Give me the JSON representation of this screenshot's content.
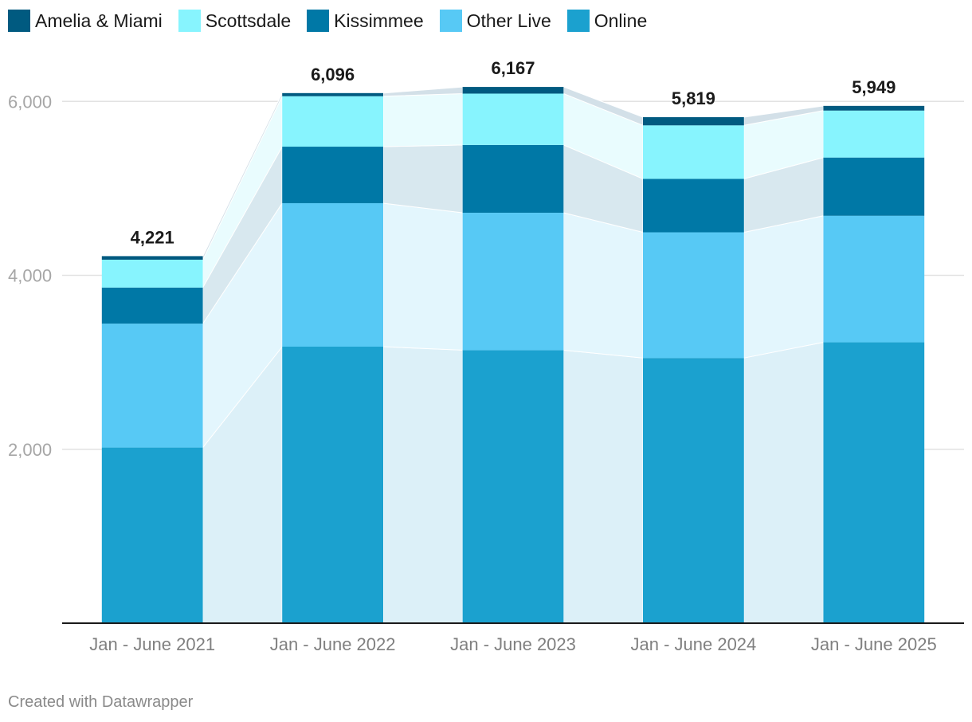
{
  "chart_data": {
    "type": "bar",
    "stacked": true,
    "title": "",
    "xlabel": "",
    "ylabel": "",
    "categories": [
      "Jan - June 2021",
      "Jan - June 2022",
      "Jan - June 2023",
      "Jan - June 2024",
      "Jan - June 2025"
    ],
    "series": [
      {
        "name": "Online",
        "color": "#1ba1cf",
        "values": [
          2020,
          3180,
          3140,
          3050,
          3230
        ]
      },
      {
        "name": "Other Live",
        "color": "#57c9f5",
        "values": [
          1425,
          1650,
          1580,
          1445,
          1455
        ]
      },
      {
        "name": "Kissimmee",
        "color": "#0078a6",
        "values": [
          415,
          650,
          780,
          615,
          670
        ]
      },
      {
        "name": "Scottsdale",
        "color": "#87f4fe",
        "values": [
          320,
          580,
          590,
          615,
          540
        ]
      },
      {
        "name": "Amelia & Miami",
        "color": "#005a80",
        "values": [
          41,
          36,
          77,
          94,
          54
        ]
      }
    ],
    "totals": [
      "4,221",
      "6,096",
      "6,167",
      "5,819",
      "5,949"
    ],
    "legend_order": [
      "Amelia & Miami",
      "Scottsdale",
      "Kissimmee",
      "Other Live",
      "Online"
    ],
    "yticks": [
      {
        "value": 2000,
        "label": "2,000"
      },
      {
        "value": 4000,
        "label": "4,000"
      },
      {
        "value": 6000,
        "label": "6,000"
      }
    ],
    "ylim": [
      0,
      6800
    ],
    "grid": true,
    "legend_position": "top-left"
  },
  "footer": {
    "credit": "Created with Datawrapper"
  }
}
